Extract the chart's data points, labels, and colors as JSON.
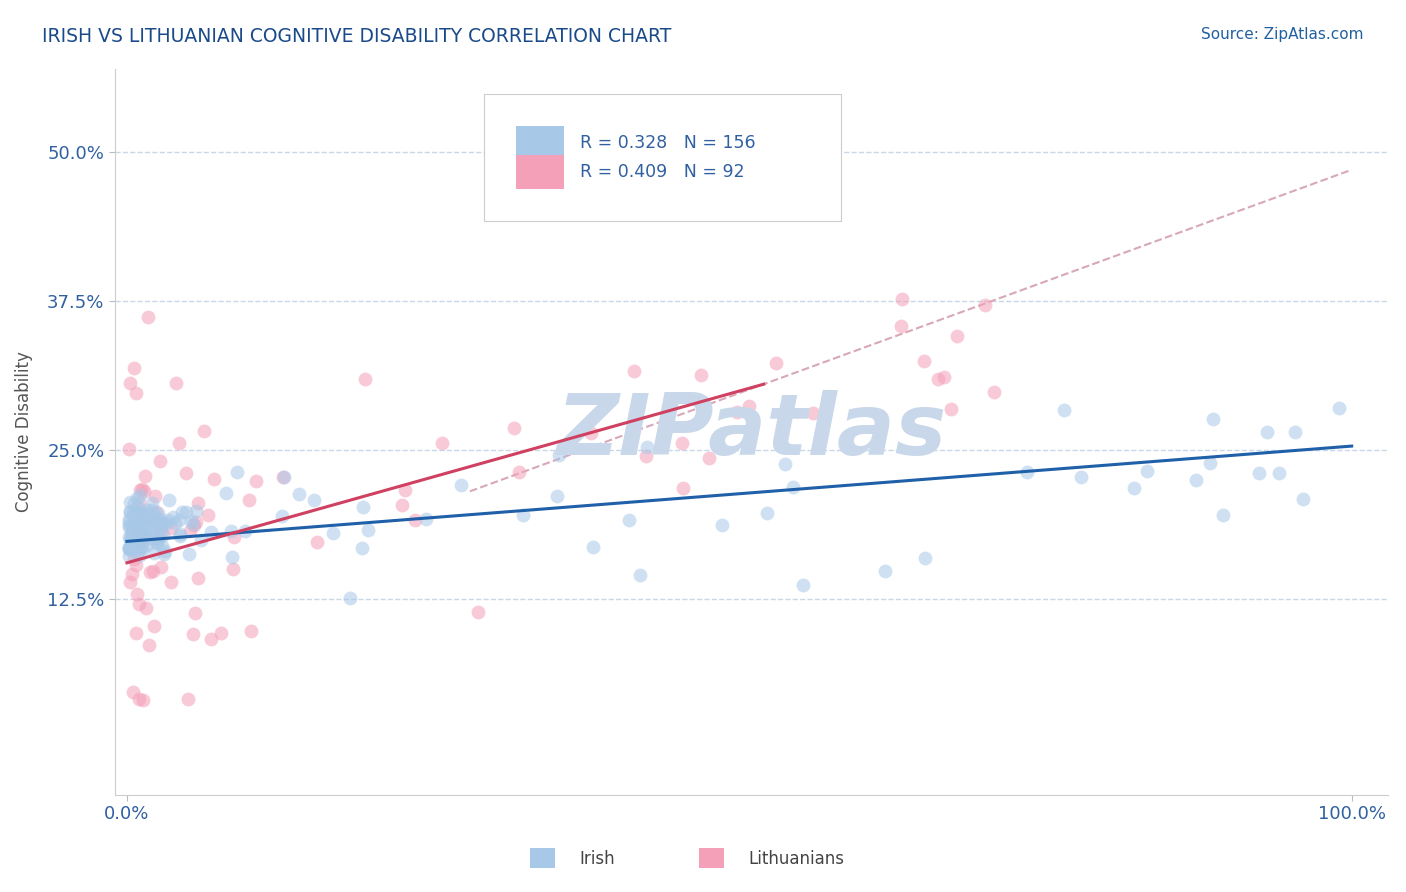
{
  "title": "IRISH VS LITHUANIAN COGNITIVE DISABILITY CORRELATION CHART",
  "source": "Source: ZipAtlas.com",
  "ylabel": "Cognitive Disability",
  "x_tick_labels": [
    "0.0%",
    "100.0%"
  ],
  "y_tick_labels": [
    "12.5%",
    "25.0%",
    "37.5%",
    "50.0%"
  ],
  "y_tick_values": [
    0.125,
    0.25,
    0.375,
    0.5
  ],
  "xlim": [
    -0.01,
    1.03
  ],
  "ylim": [
    -0.04,
    0.57
  ],
  "legend_irish": "Irish",
  "legend_lithuanian": "Lithuanians",
  "R_irish": 0.328,
  "N_irish": 156,
  "R_lithuanian": 0.409,
  "N_lithuanian": 92,
  "color_irish": "#A8C8E8",
  "color_lithuanian": "#F4A0B8",
  "color_irish_line": "#2060A8",
  "color_lithuanian_line": "#D04060",
  "color_dashed": "#D8A8B8",
  "watermark": "ZIPatlas",
  "watermark_color": "#C8D8EA",
  "title_color": "#1a4a8a",
  "source_color": "#2060A0",
  "axis_color": "#3060A0",
  "grid_color": "#C8D8E8",
  "background_color": "#FFFFFF",
  "irish_line_x0": 0.0,
  "irish_line_y0": 0.173,
  "irish_line_x1": 1.0,
  "irish_line_y1": 0.253,
  "lith_line_x0": 0.0,
  "lith_line_y0": 0.155,
  "lith_line_x1": 0.52,
  "lith_line_y1": 0.305,
  "dashed_line_x0": 0.28,
  "dashed_line_y0": 0.215,
  "dashed_line_x1": 1.0,
  "dashed_line_y1": 0.485
}
